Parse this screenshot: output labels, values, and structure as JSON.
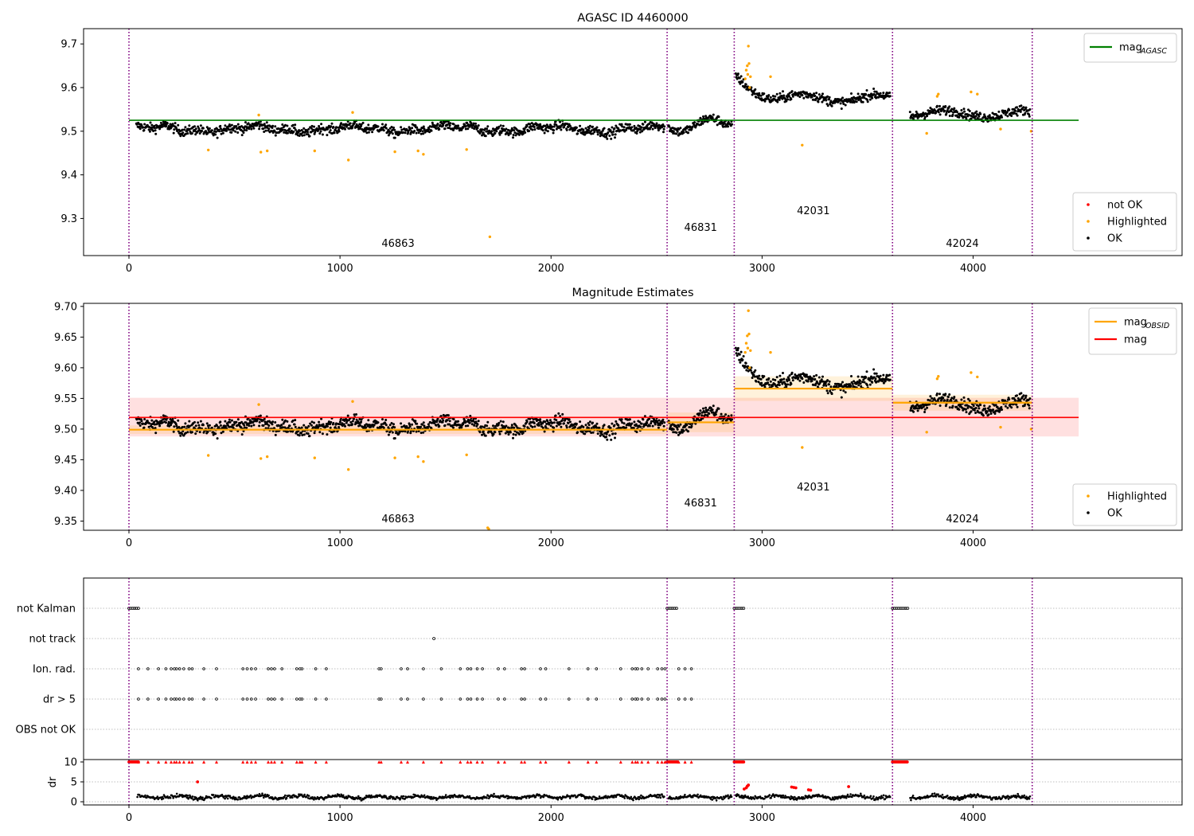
{
  "chart_data": [
    {
      "type": "scatter",
      "title": "AGASC ID 4460000",
      "xlim": [
        -215,
        4990
      ],
      "ylim": [
        9.215,
        9.735
      ],
      "x_ticks": [
        0,
        1000,
        2000,
        3000,
        4000
      ],
      "y_ticks": [
        9.3,
        9.4,
        9.5,
        9.6,
        9.7
      ],
      "obs_boundaries": [
        0,
        2550,
        2868,
        3618,
        4280
      ],
      "obsids": [
        {
          "label": "46863",
          "x": 1275,
          "y": 9.235
        },
        {
          "label": "46831",
          "x": 2709,
          "y": 9.272
        },
        {
          "label": "42031",
          "x": 3243,
          "y": 9.31
        },
        {
          "label": "42024",
          "x": 3949,
          "y": 9.235
        }
      ],
      "mag_agasc": 9.525,
      "mag_line_x": [
        0,
        4500
      ],
      "legend_top": [
        {
          "label": "mag",
          "sub": "AGASC",
          "color": "#008000",
          "kind": "line"
        }
      ],
      "legend_bottom": [
        {
          "label": "not OK",
          "color": "#ff0000",
          "kind": "dot"
        },
        {
          "label": "Highlighted",
          "color": "#ffa500",
          "kind": "dot"
        },
        {
          "label": "OK",
          "color": "#000000",
          "kind": "dot"
        }
      ],
      "highlighted": [
        [
          376,
          9.457
        ],
        [
          615,
          9.537
        ],
        [
          625,
          9.452
        ],
        [
          655,
          9.455
        ],
        [
          880,
          9.455
        ],
        [
          1040,
          9.434
        ],
        [
          1060,
          9.543
        ],
        [
          1260,
          9.453
        ],
        [
          1370,
          9.455
        ],
        [
          1395,
          9.447
        ],
        [
          1600,
          9.458
        ],
        [
          1710,
          9.258
        ],
        [
          2920,
          9.62
        ],
        [
          2925,
          9.64
        ],
        [
          2930,
          9.65
        ],
        [
          2935,
          9.695
        ],
        [
          2932,
          9.63
        ],
        [
          2938,
          9.655
        ],
        [
          2941,
          9.6
        ],
        [
          2945,
          9.625
        ],
        [
          3040,
          9.625
        ],
        [
          3190,
          9.468
        ],
        [
          3780,
          9.495
        ],
        [
          3830,
          9.58
        ],
        [
          3835,
          9.585
        ],
        [
          3990,
          9.59
        ],
        [
          4020,
          9.585
        ],
        [
          4130,
          9.505
        ],
        [
          4275,
          9.5
        ]
      ]
    },
    {
      "type": "scatter",
      "title": "Magnitude Estimates",
      "xlim": [
        -215,
        4990
      ],
      "ylim": [
        9.335,
        9.705
      ],
      "x_ticks": [
        0,
        1000,
        2000,
        3000,
        4000
      ],
      "y_ticks": [
        9.35,
        9.4,
        9.45,
        9.5,
        9.55,
        9.6,
        9.65,
        9.7
      ],
      "obs_boundaries": [
        0,
        2550,
        2868,
        3618,
        4280
      ],
      "obsids": [
        {
          "label": "46863",
          "x": 1275,
          "y": 9.348
        },
        {
          "label": "46831",
          "x": 2709,
          "y": 9.374
        },
        {
          "label": "42031",
          "x": 3243,
          "y": 9.4
        },
        {
          "label": "42024",
          "x": 3949,
          "y": 9.348
        }
      ],
      "mag": 9.519,
      "mag_band": [
        9.488,
        9.551
      ],
      "mag_line_x": [
        0,
        4500
      ],
      "mag_obsid": [
        {
          "x": [
            0,
            2550
          ],
          "y": 9.499,
          "band": [
            9.492,
            9.506
          ]
        },
        {
          "x": [
            2550,
            2868
          ],
          "y": 9.511,
          "band": [
            9.495,
            9.527
          ]
        },
        {
          "x": [
            2868,
            3618
          ],
          "y": 9.566,
          "band": [
            9.546,
            9.586
          ]
        },
        {
          "x": [
            3618,
            4280
          ],
          "y": 9.543,
          "band": [
            9.53,
            9.556
          ]
        }
      ],
      "legend_top": [
        {
          "label": "mag",
          "sub": "OBSID",
          "color": "#ffa500",
          "kind": "line"
        },
        {
          "label": "mag",
          "sub": "",
          "color": "#ff0000",
          "kind": "line"
        }
      ],
      "legend_bottom": [
        {
          "label": "Highlighted",
          "color": "#ffa500",
          "kind": "dot"
        },
        {
          "label": "OK",
          "color": "#000000",
          "kind": "dot"
        }
      ],
      "highlighted": [
        [
          376,
          9.457
        ],
        [
          615,
          9.54
        ],
        [
          625,
          9.452
        ],
        [
          655,
          9.455
        ],
        [
          880,
          9.453
        ],
        [
          1040,
          9.434
        ],
        [
          1060,
          9.545
        ],
        [
          1260,
          9.453
        ],
        [
          1370,
          9.455
        ],
        [
          1395,
          9.447
        ],
        [
          1600,
          9.458
        ],
        [
          1700,
          9.339
        ],
        [
          1705,
          9.337
        ],
        [
          2920,
          9.625
        ],
        [
          2925,
          9.64
        ],
        [
          2930,
          9.652
        ],
        [
          2935,
          9.693
        ],
        [
          2932,
          9.632
        ],
        [
          2938,
          9.655
        ],
        [
          2941,
          9.6
        ],
        [
          2945,
          9.628
        ],
        [
          3040,
          9.625
        ],
        [
          3190,
          9.47
        ],
        [
          3780,
          9.495
        ],
        [
          3830,
          9.582
        ],
        [
          3835,
          9.586
        ],
        [
          3990,
          9.592
        ],
        [
          4020,
          9.585
        ],
        [
          4130,
          9.503
        ],
        [
          4275,
          9.5
        ]
      ]
    },
    {
      "type": "scatter",
      "title": "",
      "xlim": [
        -215,
        4990
      ],
      "x_ticks": [
        0,
        1000,
        2000,
        3000,
        4000
      ],
      "obs_boundaries": [
        0,
        2550,
        2868,
        3618,
        4280
      ],
      "flag_rows": [
        "not Kalman",
        "not track",
        "Ion. rad.",
        "dr > 5",
        "OBS not OK"
      ],
      "not_kalman_ranges": [
        [
          0,
          45
        ],
        [
          2550,
          2600
        ],
        [
          2868,
          2915
        ],
        [
          3618,
          3690
        ]
      ],
      "not_track_x": [
        1445
      ],
      "ion_rad_x": [
        45,
        90,
        140,
        175,
        200,
        215,
        225,
        240,
        260,
        285,
        300,
        355,
        415,
        540,
        560,
        580,
        600,
        660,
        675,
        690,
        725,
        795,
        810,
        820,
        885,
        935,
        1185,
        1195,
        1290,
        1320,
        1395,
        1480,
        1570,
        1605,
        1620,
        1650,
        1675,
        1750,
        1780,
        1860,
        1875,
        1950,
        1975,
        2085,
        2175,
        2215,
        2330,
        2385,
        2400,
        2410,
        2430,
        2460,
        2505,
        2525,
        2540,
        2605,
        2635,
        2665
      ],
      "dr_gt5_x": [
        45,
        90,
        140,
        175,
        200,
        215,
        225,
        240,
        260,
        285,
        300,
        355,
        415,
        540,
        560,
        580,
        600,
        660,
        675,
        690,
        725,
        795,
        810,
        820,
        885,
        935,
        1185,
        1195,
        1290,
        1320,
        1395,
        1480,
        1570,
        1605,
        1620,
        1650,
        1675,
        1750,
        1780,
        1860,
        1875,
        1950,
        1975,
        2085,
        2175,
        2215,
        2330,
        2385,
        2400,
        2410,
        2430,
        2460,
        2505,
        2525,
        2540,
        2605,
        2635,
        2665
      ],
      "dr_label": "dr",
      "dr_ticks": [
        0,
        5,
        10
      ],
      "dr_ylim": [
        -0.8,
        10.6
      ],
      "dr_red_points": [
        [
          325,
          5
        ],
        [
          2915,
          3.2
        ],
        [
          2925,
          3.5
        ],
        [
          2930,
          3.9
        ],
        [
          2935,
          4.2
        ],
        [
          3140,
          3.7
        ],
        [
          3150,
          3.6
        ],
        [
          3160,
          3.5
        ],
        [
          3220,
          3
        ],
        [
          3230,
          2.9
        ],
        [
          3410,
          3.8
        ]
      ]
    }
  ]
}
